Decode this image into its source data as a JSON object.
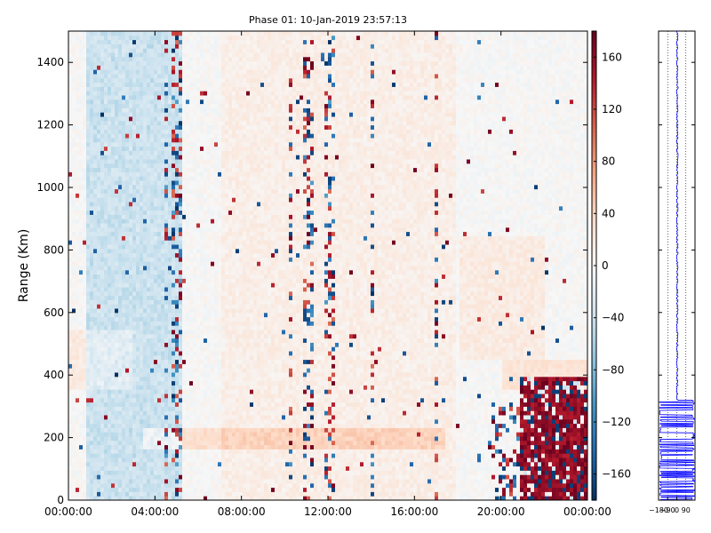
{
  "chart_data": [
    {
      "type": "heatmap",
      "title": "Phase 01: 10-Jan-2019 23:57:13",
      "xlabel": "",
      "ylabel": "Range (Km)",
      "x_range_hours": [
        0,
        24
      ],
      "xticks": [
        "00:00:00",
        "04:00:00",
        "08:00:00",
        "12:00:00",
        "16:00:00",
        "20:00:00",
        "00:00:00"
      ],
      "ylim": [
        0,
        1500
      ],
      "yticks": [
        "0",
        "200",
        "400",
        "600",
        "800",
        "1000",
        "1200",
        "1400"
      ],
      "colormap": "RdBu_r",
      "colorbar": {
        "range": [
          -180,
          180
        ],
        "ticks": [
          "160",
          "120",
          "80",
          "40",
          "0",
          "−40",
          "−80",
          "−120",
          "−160"
        ]
      },
      "grid": false,
      "features": {
        "left_negative_band_hours": [
          0.8,
          5.2
        ],
        "noisy_columns_hours": [
          4.5,
          4.9,
          5.1,
          10.3,
          11.0,
          11.2,
          12.0,
          12.2,
          14.0,
          17.0
        ],
        "positive_band_near_200km_hours": [
          3.5,
          17.5
        ],
        "strong_block_hours": [
          20.8,
          24.0
        ],
        "strong_block_range_km": [
          0,
          400
        ]
      }
    },
    {
      "type": "line",
      "series": [
        {
          "color": "#0000ff"
        }
      ],
      "xticks": [
        "−180",
        "−90",
        "0",
        "90"
      ],
      "ylim": [
        0,
        1500
      ],
      "grid": true,
      "profile_note": "near-zero values above ~320 km, large oscillations below",
      "profile_transition_range_km": 320
    }
  ],
  "colors": {
    "profile_line": "#0000ff",
    "axes": "#000000"
  }
}
